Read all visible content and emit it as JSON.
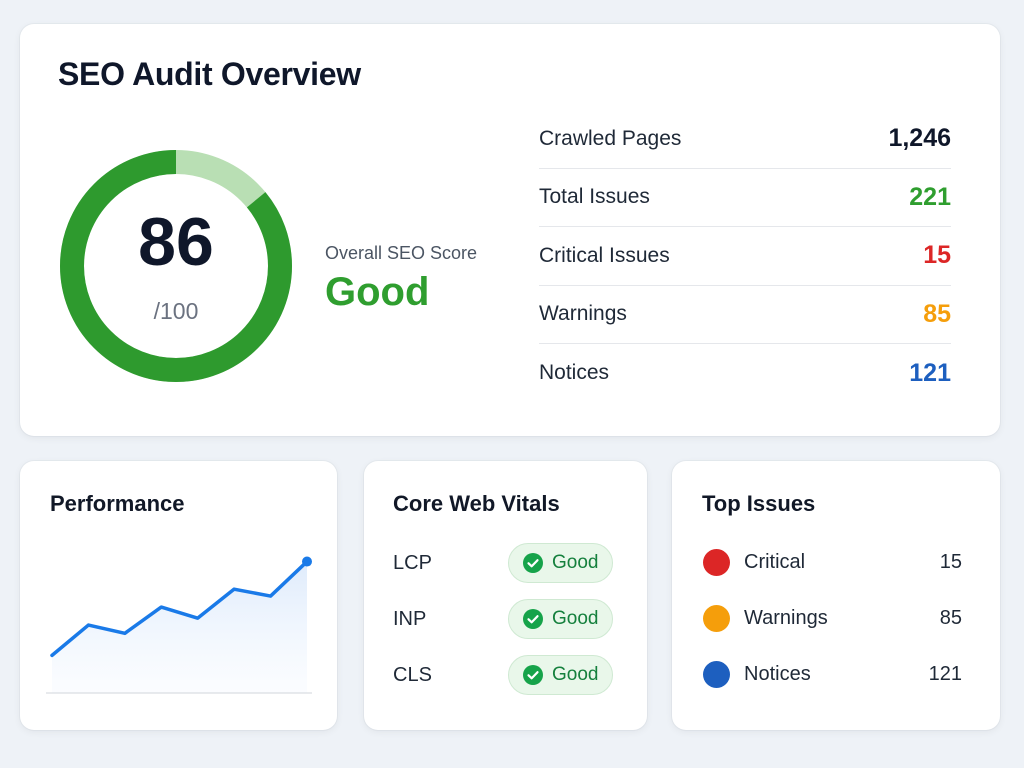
{
  "overview": {
    "title": "SEO Audit Overview",
    "score": {
      "value": "86",
      "max": "/100",
      "fraction": 0.86,
      "label": "Overall SEO Score",
      "rating": "Good",
      "rating_color": "#2f9e2f",
      "ring_color": "#2e9a2e",
      "ring_track_color": "#b9dfb4"
    },
    "stats": [
      {
        "label": "Crawled Pages",
        "value": "1,246",
        "color": "#0f172a"
      },
      {
        "label": "Total Issues",
        "value": "221",
        "color": "#2f9e2f"
      },
      {
        "label": "Critical Issues",
        "value": "15",
        "color": "#dc2626"
      },
      {
        "label": "Warnings",
        "value": "85",
        "color": "#f59e0b"
      },
      {
        "label": "Notices",
        "value": "121",
        "color": "#1d5fbf"
      }
    ]
  },
  "performance": {
    "title": "Performance",
    "line_color": "#1a7ae8",
    "chart_data": {
      "type": "line",
      "values": [
        20,
        42,
        36,
        55,
        47,
        68,
        63,
        88
      ]
    }
  },
  "core_web_vitals": {
    "title": "Core Web Vitals",
    "items": [
      {
        "label": "LCP",
        "status": "Good",
        "icon": "check-icon"
      },
      {
        "label": "INP",
        "status": "Good",
        "icon": "check-icon"
      },
      {
        "label": "CLS",
        "status": "Good",
        "icon": "check-icon"
      }
    ],
    "status_color": "#16a34a"
  },
  "top_issues": {
    "title": "Top Issues",
    "items": [
      {
        "label": "Critical",
        "count": "15",
        "color": "#dc2626"
      },
      {
        "label": "Warnings",
        "count": "85",
        "color": "#f59e0b"
      },
      {
        "label": "Notices",
        "count": "121",
        "color": "#1d5fbf"
      }
    ]
  }
}
